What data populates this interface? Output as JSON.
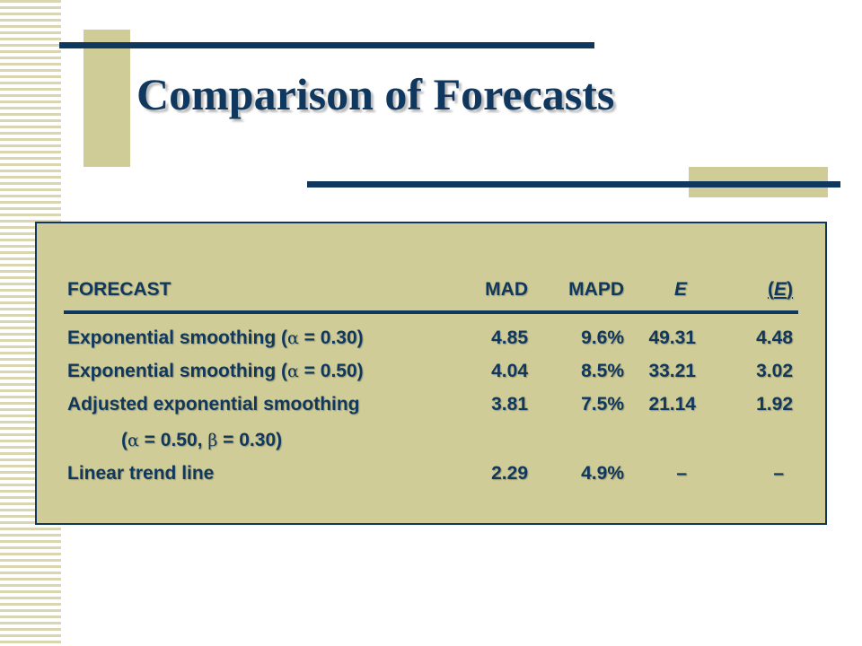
{
  "slide": {
    "title": "Comparison of Forecasts"
  },
  "table": {
    "headers": {
      "forecast": "FORECAST",
      "mad": "MAD",
      "mapd": "MAPD",
      "e": "E",
      "e_open": "(",
      "e_inner": "E",
      "e_close": ")"
    },
    "rows": [
      {
        "label_pre": "Exponential smoothing (",
        "greek1": "α",
        "label_post": " = 0.30)",
        "mad": "4.85",
        "mapd": "9.6%",
        "e": "49.31",
        "e_avg": "4.48"
      },
      {
        "label_pre": "Exponential smoothing (",
        "greek1": "α",
        "label_post": " = 0.50)",
        "mad": "4.04",
        "mapd": "8.5%",
        "e": "33.21",
        "e_avg": "3.02"
      },
      {
        "label": "Adjusted exponential smoothing",
        "mad": "3.81",
        "mapd": "7.5%",
        "e": "21.14",
        "e_avg": "1.92"
      },
      {
        "label_pre": "(",
        "greek1": "α",
        "label_mid": " = 0.50, ",
        "greek2": "β",
        "label_post": " = 0.30)"
      },
      {
        "label": "Linear trend line",
        "mad": "2.29",
        "mapd": "4.9%",
        "e": "–",
        "e_avg": "–"
      }
    ]
  }
}
